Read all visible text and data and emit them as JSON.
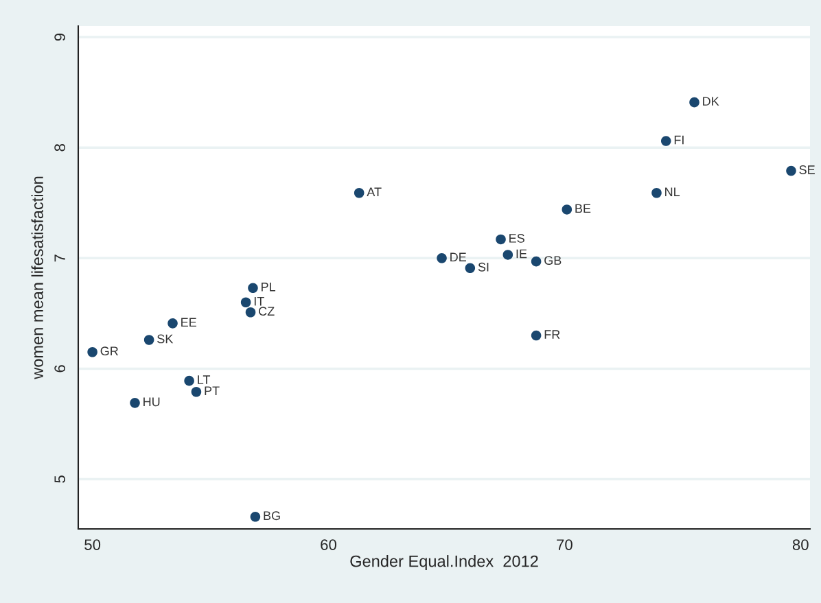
{
  "chart_data": {
    "type": "scatter",
    "xlabel": "Gender Equal.Index  2012",
    "ylabel": "women mean lifesatisfaction",
    "x": [
      75.5,
      74.3,
      79.6,
      73.9,
      61.3,
      70.1,
      67.3,
      64.8,
      67.6,
      68.8,
      66.0,
      68.8,
      56.8,
      56.5,
      56.7,
      53.4,
      52.4,
      50.0,
      54.1,
      54.4,
      51.8,
      56.9
    ],
    "series": [
      {
        "color": "#1a476f",
        "values": [
          8.41,
          8.06,
          7.79,
          7.59,
          7.59,
          7.44,
          7.17,
          7.0,
          7.03,
          6.97,
          6.91,
          6.3,
          6.73,
          6.6,
          6.51,
          6.41,
          6.26,
          6.15,
          5.89,
          5.79,
          5.69,
          4.66
        ]
      }
    ],
    "annotations": [
      {
        "text": "DK",
        "x": 75.5,
        "y": 8.41
      },
      {
        "text": "FI",
        "x": 74.3,
        "y": 8.06
      },
      {
        "text": "SE",
        "x": 79.6,
        "y": 7.79
      },
      {
        "text": "NL",
        "x": 73.9,
        "y": 7.59
      },
      {
        "text": "AT",
        "x": 61.3,
        "y": 7.59
      },
      {
        "text": "BE",
        "x": 70.1,
        "y": 7.44
      },
      {
        "text": "ES",
        "x": 67.3,
        "y": 7.17
      },
      {
        "text": "DE",
        "x": 64.8,
        "y": 7.0
      },
      {
        "text": "IE",
        "x": 67.6,
        "y": 7.03
      },
      {
        "text": "GB",
        "x": 68.8,
        "y": 6.97
      },
      {
        "text": "SI",
        "x": 66.0,
        "y": 6.91
      },
      {
        "text": "FR",
        "x": 68.8,
        "y": 6.3
      },
      {
        "text": "PL",
        "x": 56.8,
        "y": 6.73
      },
      {
        "text": "IT",
        "x": 56.5,
        "y": 6.6
      },
      {
        "text": "CZ",
        "x": 56.7,
        "y": 6.51
      },
      {
        "text": "EE",
        "x": 53.4,
        "y": 6.41
      },
      {
        "text": "SK",
        "x": 52.4,
        "y": 6.26
      },
      {
        "text": "GR",
        "x": 50.0,
        "y": 6.15
      },
      {
        "text": "LT",
        "x": 54.1,
        "y": 5.89
      },
      {
        "text": "PT",
        "x": 54.4,
        "y": 5.79
      },
      {
        "text": "HU",
        "x": 51.8,
        "y": 5.69
      },
      {
        "text": "BG",
        "x": 56.9,
        "y": 4.66
      }
    ],
    "xlim": [
      49.4,
      80.4
    ],
    "ylim": [
      4.55,
      9.1
    ],
    "xticks": [
      50,
      60,
      70,
      80
    ],
    "yticks": [
      5,
      6,
      7,
      8,
      9
    ],
    "grid": "y",
    "marker": "circle"
  }
}
